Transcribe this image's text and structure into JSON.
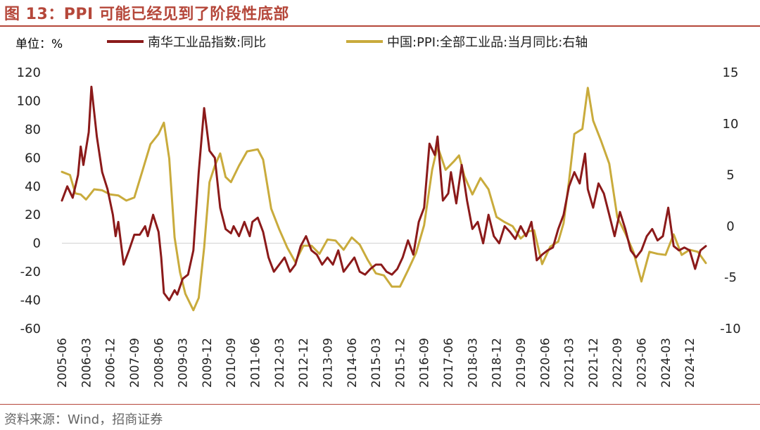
{
  "header": {
    "title": "图 13：PPI 可能已经见到了阶段性底部"
  },
  "unit_label": "单位：%",
  "source": "资料来源：Wind，招商证券",
  "colors": {
    "nanhua": "#8b1a1a",
    "ppi": "#c9ab3c",
    "title": "#b5473a"
  },
  "chart_data": {
    "type": "line",
    "left_axis": {
      "ylim": [
        -60,
        120
      ],
      "ticks": [
        "120",
        "100",
        "80",
        "60",
        "40",
        "20",
        "0",
        "-20",
        "-40",
        "-60"
      ]
    },
    "right_axis": {
      "ylim": [
        -10,
        15
      ],
      "ticks": [
        "15",
        "10",
        "5",
        "0",
        "-5",
        "-10"
      ]
    },
    "x_range": [
      "2005-06",
      "2025-06"
    ],
    "x_ticks": [
      "2005-06",
      "2006-03",
      "2006-12",
      "2007-09",
      "2008-06",
      "2009-03",
      "2009-12",
      "2010-09",
      "2011-06",
      "2012-03",
      "2012-12",
      "2013-09",
      "2014-06",
      "2015-03",
      "2015-12",
      "2016-09",
      "2017-06",
      "2018-03",
      "2018-12",
      "2019-09",
      "2020-06",
      "2021-03",
      "2021-12",
      "2022-09",
      "2023-06",
      "2024-03",
      "2024-12"
    ],
    "series": [
      {
        "name": "南华工业品指数:同比",
        "axis": "left",
        "color": "#8b1a1a",
        "points": [
          [
            "2005-06",
            30
          ],
          [
            "2005-08",
            40
          ],
          [
            "2005-10",
            32
          ],
          [
            "2005-12",
            48
          ],
          [
            "2006-01",
            68
          ],
          [
            "2006-02",
            55
          ],
          [
            "2006-04",
            78
          ],
          [
            "2006-05",
            110
          ],
          [
            "2006-07",
            75
          ],
          [
            "2006-09",
            50
          ],
          [
            "2006-11",
            38
          ],
          [
            "2007-01",
            20
          ],
          [
            "2007-02",
            5
          ],
          [
            "2007-03",
            15
          ],
          [
            "2007-05",
            -15
          ],
          [
            "2007-07",
            -5
          ],
          [
            "2007-09",
            6
          ],
          [
            "2007-11",
            6
          ],
          [
            "2008-01",
            12
          ],
          [
            "2008-02",
            5
          ],
          [
            "2008-04",
            20
          ],
          [
            "2008-06",
            8
          ],
          [
            "2008-07",
            -10
          ],
          [
            "2008-08",
            -35
          ],
          [
            "2008-10",
            -40
          ],
          [
            "2008-12",
            -33
          ],
          [
            "2009-01",
            -36
          ],
          [
            "2009-03",
            -25
          ],
          [
            "2009-05",
            -22
          ],
          [
            "2009-07",
            -5
          ],
          [
            "2009-09",
            50
          ],
          [
            "2009-11",
            95
          ],
          [
            "2010-01",
            65
          ],
          [
            "2010-03",
            60
          ],
          [
            "2010-05",
            25
          ],
          [
            "2010-07",
            10
          ],
          [
            "2010-09",
            7
          ],
          [
            "2010-10",
            12
          ],
          [
            "2010-12",
            5
          ],
          [
            "2011-02",
            15
          ],
          [
            "2011-04",
            5
          ],
          [
            "2011-05",
            15
          ],
          [
            "2011-07",
            18
          ],
          [
            "2011-09",
            8
          ],
          [
            "2011-11",
            -10
          ],
          [
            "2012-01",
            -20
          ],
          [
            "2012-03",
            -15
          ],
          [
            "2012-05",
            -10
          ],
          [
            "2012-07",
            -20
          ],
          [
            "2012-09",
            -15
          ],
          [
            "2012-11",
            -2
          ],
          [
            "2013-01",
            5
          ],
          [
            "2013-03",
            -5
          ],
          [
            "2013-05",
            -8
          ],
          [
            "2013-07",
            -15
          ],
          [
            "2013-09",
            -10
          ],
          [
            "2013-11",
            -15
          ],
          [
            "2014-01",
            -5
          ],
          [
            "2014-03",
            -20
          ],
          [
            "2014-05",
            -15
          ],
          [
            "2014-07",
            -10
          ],
          [
            "2014-09",
            -20
          ],
          [
            "2014-11",
            -22
          ],
          [
            "2015-01",
            -18
          ],
          [
            "2015-03",
            -15
          ],
          [
            "2015-05",
            -15
          ],
          [
            "2015-07",
            -20
          ],
          [
            "2015-09",
            -22
          ],
          [
            "2015-11",
            -18
          ],
          [
            "2016-01",
            -10
          ],
          [
            "2016-03",
            2
          ],
          [
            "2016-05",
            -8
          ],
          [
            "2016-07",
            15
          ],
          [
            "2016-09",
            25
          ],
          [
            "2016-11",
            70
          ],
          [
            "2017-01",
            62
          ],
          [
            "2017-02",
            75
          ],
          [
            "2017-04",
            30
          ],
          [
            "2017-06",
            35
          ],
          [
            "2017-07",
            50
          ],
          [
            "2017-09",
            28
          ],
          [
            "2017-11",
            55
          ],
          [
            "2018-01",
            30
          ],
          [
            "2018-03",
            10
          ],
          [
            "2018-05",
            15
          ],
          [
            "2018-07",
            0
          ],
          [
            "2018-09",
            20
          ],
          [
            "2018-11",
            5
          ],
          [
            "2019-01",
            0
          ],
          [
            "2019-03",
            12
          ],
          [
            "2019-05",
            8
          ],
          [
            "2019-07",
            3
          ],
          [
            "2019-09",
            12
          ],
          [
            "2019-11",
            5
          ],
          [
            "2020-01",
            15
          ],
          [
            "2020-03",
            -12
          ],
          [
            "2020-05",
            -8
          ],
          [
            "2020-07",
            -5
          ],
          [
            "2020-09",
            -3
          ],
          [
            "2020-11",
            10
          ],
          [
            "2021-01",
            20
          ],
          [
            "2021-03",
            40
          ],
          [
            "2021-05",
            50
          ],
          [
            "2021-07",
            42
          ],
          [
            "2021-09",
            63
          ],
          [
            "2021-10",
            38
          ],
          [
            "2021-12",
            25
          ],
          [
            "2022-02",
            42
          ],
          [
            "2022-04",
            35
          ],
          [
            "2022-06",
            20
          ],
          [
            "2022-08",
            5
          ],
          [
            "2022-10",
            22
          ],
          [
            "2022-12",
            10
          ],
          [
            "2023-02",
            -5
          ],
          [
            "2023-04",
            -10
          ],
          [
            "2023-06",
            -5
          ],
          [
            "2023-08",
            5
          ],
          [
            "2023-10",
            10
          ],
          [
            "2023-12",
            2
          ],
          [
            "2024-02",
            5
          ],
          [
            "2024-04",
            25
          ],
          [
            "2024-06",
            -2
          ],
          [
            "2024-08",
            -5
          ],
          [
            "2024-10",
            -3
          ],
          [
            "2024-12",
            -5
          ],
          [
            "2025-02",
            -18
          ],
          [
            "2025-04",
            -5
          ],
          [
            "2025-06",
            -2
          ]
        ]
      },
      {
        "name": "中国:PPI:全部工业品:当月同比:右轴",
        "axis": "right",
        "color": "#c9ab3c",
        "points": [
          [
            "2005-06",
            5.3
          ],
          [
            "2005-09",
            5.0
          ],
          [
            "2005-11",
            3.2
          ],
          [
            "2006-01",
            3.1
          ],
          [
            "2006-03",
            2.6
          ],
          [
            "2006-06",
            3.6
          ],
          [
            "2006-09",
            3.5
          ],
          [
            "2006-12",
            3.1
          ],
          [
            "2007-03",
            3.0
          ],
          [
            "2007-06",
            2.5
          ],
          [
            "2007-09",
            2.8
          ],
          [
            "2007-12",
            5.4
          ],
          [
            "2008-03",
            8.0
          ],
          [
            "2008-06",
            9.0
          ],
          [
            "2008-08",
            10.1
          ],
          [
            "2008-10",
            6.6
          ],
          [
            "2008-12",
            -1.1
          ],
          [
            "2009-02",
            -4.5
          ],
          [
            "2009-04",
            -6.6
          ],
          [
            "2009-07",
            -8.2
          ],
          [
            "2009-09",
            -7.0
          ],
          [
            "2009-11",
            -2.1
          ],
          [
            "2010-01",
            4.3
          ],
          [
            "2010-03",
            5.9
          ],
          [
            "2010-05",
            7.1
          ],
          [
            "2010-07",
            4.8
          ],
          [
            "2010-09",
            4.3
          ],
          [
            "2010-12",
            5.9
          ],
          [
            "2011-03",
            7.3
          ],
          [
            "2011-07",
            7.5
          ],
          [
            "2011-09",
            6.5
          ],
          [
            "2011-12",
            1.7
          ],
          [
            "2012-03",
            -0.3
          ],
          [
            "2012-06",
            -2.1
          ],
          [
            "2012-09",
            -3.5
          ],
          [
            "2012-12",
            -1.9
          ],
          [
            "2013-03",
            -1.9
          ],
          [
            "2013-06",
            -2.7
          ],
          [
            "2013-09",
            -1.3
          ],
          [
            "2013-12",
            -1.4
          ],
          [
            "2014-03",
            -2.3
          ],
          [
            "2014-06",
            -1.1
          ],
          [
            "2014-09",
            -1.8
          ],
          [
            "2014-12",
            -3.3
          ],
          [
            "2015-03",
            -4.6
          ],
          [
            "2015-06",
            -4.8
          ],
          [
            "2015-09",
            -5.9
          ],
          [
            "2015-12",
            -5.9
          ],
          [
            "2016-03",
            -4.3
          ],
          [
            "2016-06",
            -2.6
          ],
          [
            "2016-09",
            0.1
          ],
          [
            "2016-12",
            5.5
          ],
          [
            "2017-02",
            7.8
          ],
          [
            "2017-05",
            5.5
          ],
          [
            "2017-08",
            6.3
          ],
          [
            "2017-10",
            6.9
          ],
          [
            "2017-12",
            4.9
          ],
          [
            "2018-03",
            3.1
          ],
          [
            "2018-06",
            4.7
          ],
          [
            "2018-09",
            3.6
          ],
          [
            "2018-12",
            0.9
          ],
          [
            "2019-03",
            0.4
          ],
          [
            "2019-06",
            0.0
          ],
          [
            "2019-09",
            -1.2
          ],
          [
            "2019-12",
            -0.5
          ],
          [
            "2020-02",
            -0.4
          ],
          [
            "2020-05",
            -3.7
          ],
          [
            "2020-08",
            -2.0
          ],
          [
            "2020-11",
            -1.5
          ],
          [
            "2021-01",
            0.3
          ],
          [
            "2021-03",
            4.4
          ],
          [
            "2021-05",
            9.0
          ],
          [
            "2021-08",
            9.5
          ],
          [
            "2021-10",
            13.5
          ],
          [
            "2021-12",
            10.3
          ],
          [
            "2022-03",
            8.3
          ],
          [
            "2022-06",
            6.1
          ],
          [
            "2022-09",
            0.9
          ],
          [
            "2022-12",
            -0.7
          ],
          [
            "2023-03",
            -2.5
          ],
          [
            "2023-06",
            -5.4
          ],
          [
            "2023-09",
            -2.5
          ],
          [
            "2023-12",
            -2.7
          ],
          [
            "2024-03",
            -2.8
          ],
          [
            "2024-06",
            -0.8
          ],
          [
            "2024-09",
            -2.8
          ],
          [
            "2024-12",
            -2.3
          ],
          [
            "2025-03",
            -2.5
          ],
          [
            "2025-06",
            -3.6
          ]
        ]
      }
    ]
  }
}
